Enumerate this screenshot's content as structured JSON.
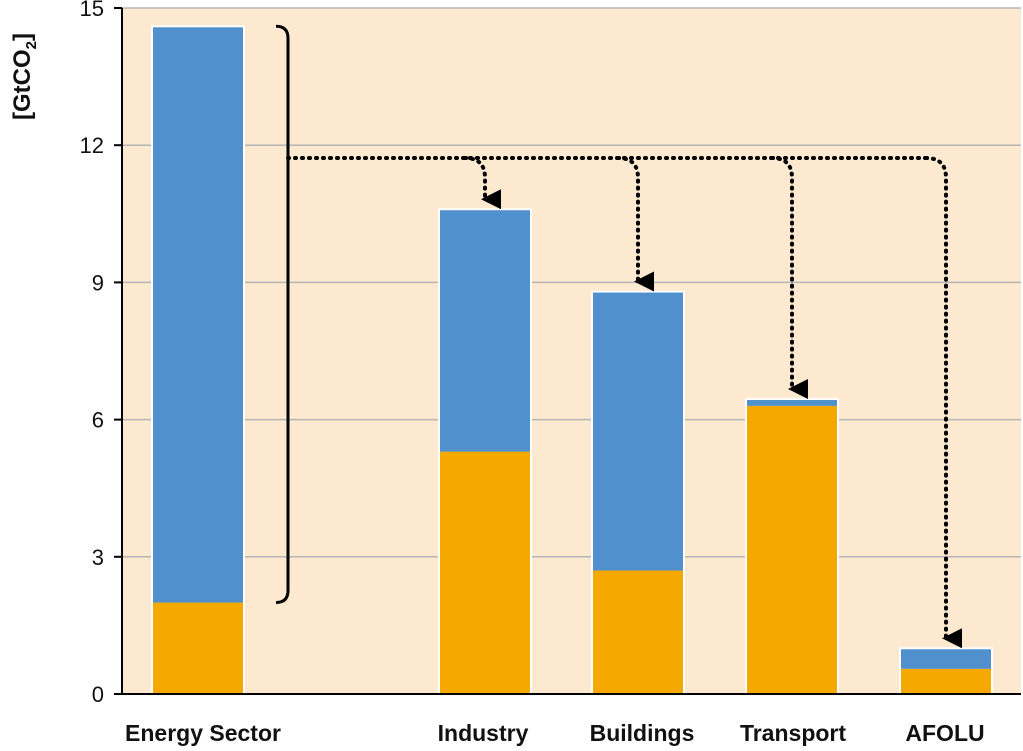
{
  "chart_data": {
    "type": "bar",
    "stacked": true,
    "ylabel": "[GtCO2]",
    "ylabel_main": "[GtCO",
    "ylabel_sub": "2",
    "ylabel_close": "]",
    "ylim": [
      0,
      15
    ],
    "yticks": [
      "0",
      "3",
      "6",
      "9",
      "12",
      "15"
    ],
    "grid": true,
    "categories": [
      "Energy Sector",
      "Industry",
      "Buildings",
      "Transport",
      "AFOLU"
    ],
    "series": [
      {
        "values": [
          2.0,
          5.3,
          2.7,
          6.3,
          0.55
        ],
        "color": "#F5A800"
      },
      {
        "values": [
          12.6,
          5.3,
          6.1,
          0.15,
          0.45
        ],
        "color": "#5091CD"
      }
    ],
    "annotation": "bracket on Energy Sector bar with dotted arrows redistributing to Industry, Buildings, Transport, AFOLU",
    "colors": {
      "plot_background": "#FCE9CF",
      "grid": "#B5B5B5",
      "axis": "#000000",
      "bar_outline": "#FFFFFF"
    }
  }
}
